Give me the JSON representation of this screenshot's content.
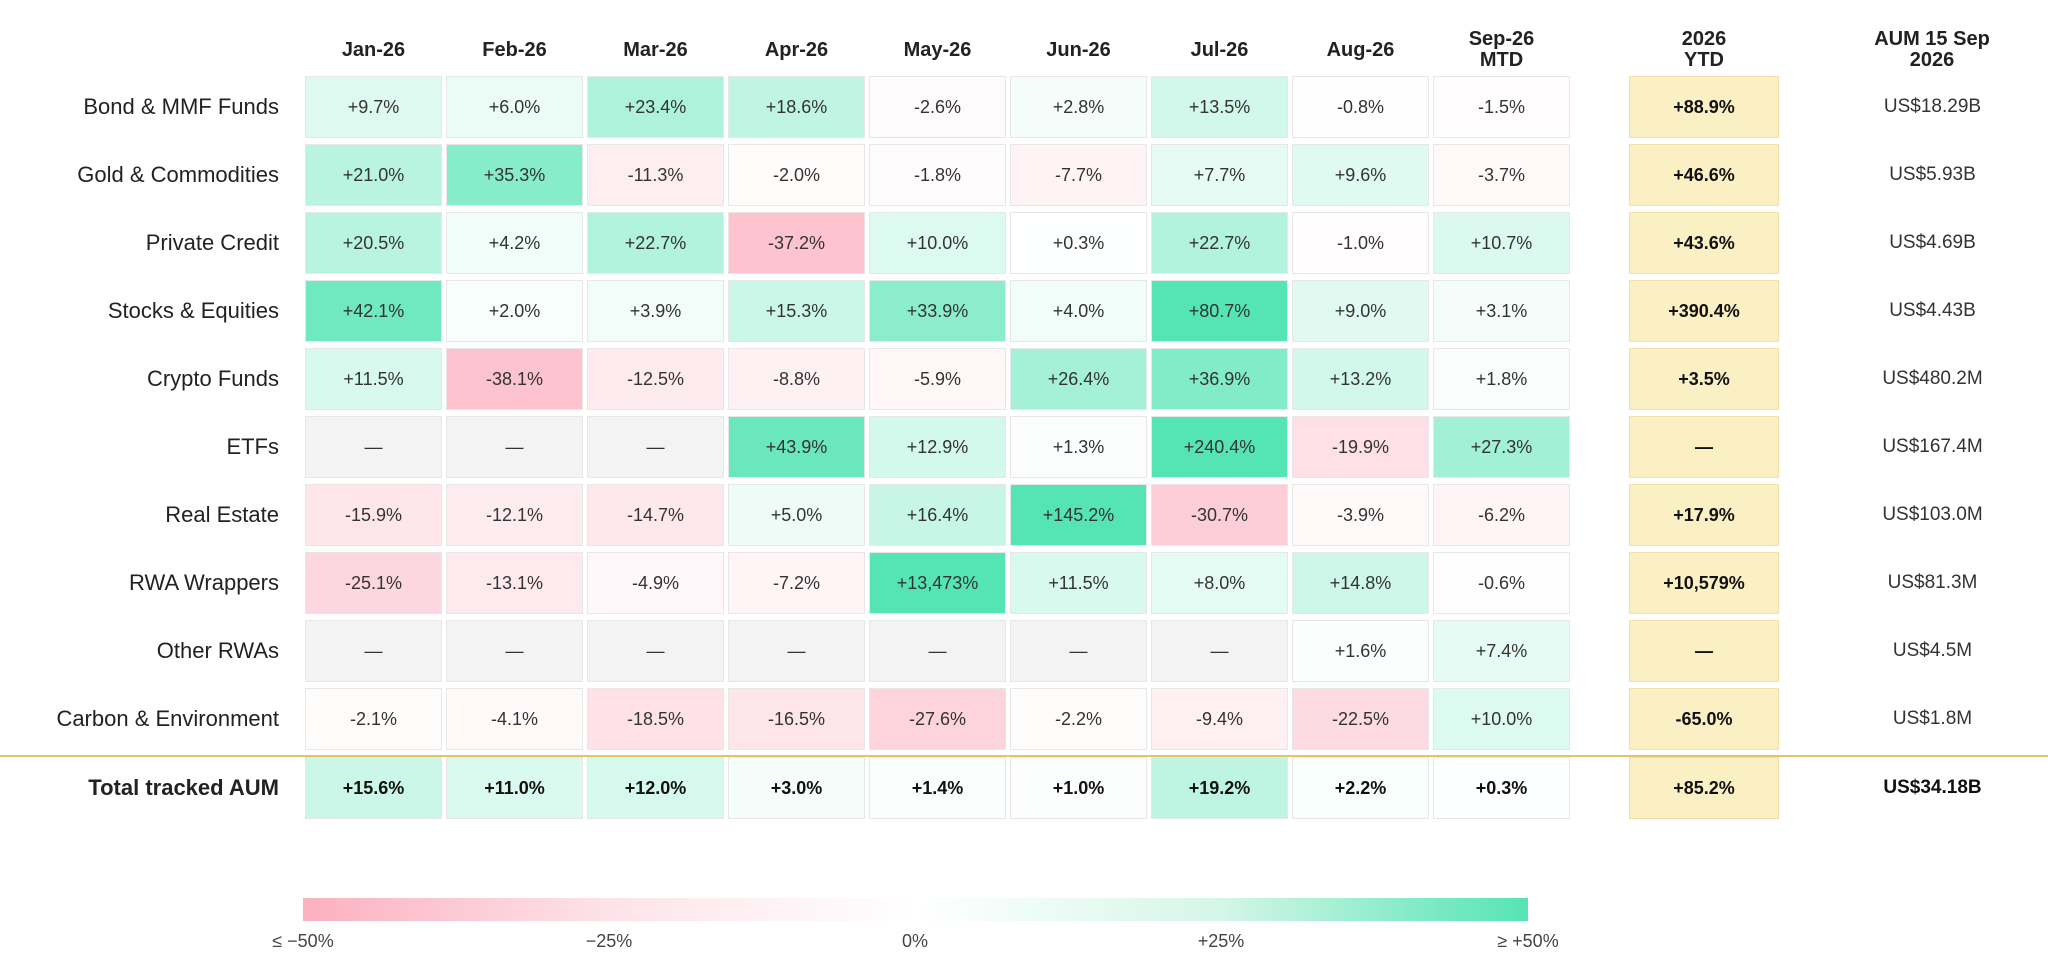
{
  "chart_data": {
    "type": "heatmap",
    "columns": [
      "Jan-26",
      "Feb-26",
      "Mar-26",
      "Apr-26",
      "May-26",
      "Jun-26",
      "Jul-26",
      "Aug-26",
      "Sep-26 MTD"
    ],
    "ytd_header": "2026 YTD",
    "aum_header": "AUM 15 Sep 2026",
    "rows": [
      {
        "label": "Bond & MMF Funds",
        "values": [
          "+9.7%",
          "+6.0%",
          "+23.4%",
          "+18.6%",
          "-2.6%",
          "+2.8%",
          "+13.5%",
          "-0.8%",
          "-1.5%"
        ],
        "ytd": "+88.9%",
        "aum": "US$18.29B"
      },
      {
        "label": "Gold & Commodities",
        "values": [
          "+21.0%",
          "+35.3%",
          "-11.3%",
          "-2.0%",
          "-1.8%",
          "-7.7%",
          "+7.7%",
          "+9.6%",
          "-3.7%"
        ],
        "ytd": "+46.6%",
        "aum": "US$5.93B"
      },
      {
        "label": "Private Credit",
        "values": [
          "+20.5%",
          "+4.2%",
          "+22.7%",
          "-37.2%",
          "+10.0%",
          "+0.3%",
          "+22.7%",
          "-1.0%",
          "+10.7%"
        ],
        "ytd": "+43.6%",
        "aum": "US$4.69B"
      },
      {
        "label": "Stocks & Equities",
        "values": [
          "+42.1%",
          "+2.0%",
          "+3.9%",
          "+15.3%",
          "+33.9%",
          "+4.0%",
          "+80.7%",
          "+9.0%",
          "+3.1%"
        ],
        "ytd": "+390.4%",
        "aum": "US$4.43B"
      },
      {
        "label": "Crypto Funds",
        "values": [
          "+11.5%",
          "-38.1%",
          "-12.5%",
          "-8.8%",
          "-5.9%",
          "+26.4%",
          "+36.9%",
          "+13.2%",
          "+1.8%"
        ],
        "ytd": "+3.5%",
        "aum": "US$480.2M"
      },
      {
        "label": "ETFs",
        "values": [
          "—",
          "—",
          "—",
          "+43.9%",
          "+12.9%",
          "+1.3%",
          "+240.4%",
          "-19.9%",
          "+27.3%"
        ],
        "ytd": "—",
        "aum": "US$167.4M"
      },
      {
        "label": "Real Estate",
        "values": [
          "-15.9%",
          "-12.1%",
          "-14.7%",
          "+5.0%",
          "+16.4%",
          "+145.2%",
          "-30.7%",
          "-3.9%",
          "-6.2%"
        ],
        "ytd": "+17.9%",
        "aum": "US$103.0M"
      },
      {
        "label": "RWA Wrappers",
        "values": [
          "-25.1%",
          "-13.1%",
          "-4.9%",
          "-7.2%",
          "+13,473%",
          "+11.5%",
          "+8.0%",
          "+14.8%",
          "-0.6%"
        ],
        "ytd": "+10,579%",
        "aum": "US$81.3M"
      },
      {
        "label": "Other RWAs",
        "values": [
          "—",
          "—",
          "—",
          "—",
          "—",
          "—",
          "—",
          "+1.6%",
          "+7.4%"
        ],
        "ytd": "—",
        "aum": "US$4.5M"
      },
      {
        "label": "Carbon & Environment",
        "values": [
          "-2.1%",
          "-4.1%",
          "-18.5%",
          "-16.5%",
          "-27.6%",
          "-2.2%",
          "-9.4%",
          "-22.5%",
          "+10.0%"
        ],
        "ytd": "-65.0%",
        "aum": "US$1.8M"
      }
    ],
    "total_row": {
      "label": "Total tracked AUM",
      "values": [
        "+15.6%",
        "+11.0%",
        "+12.0%",
        "+3.0%",
        "+1.4%",
        "+1.0%",
        "+19.2%",
        "+2.2%",
        "+0.3%"
      ],
      "ytd": "+85.2%",
      "aum": "US$34.18B"
    },
    "color_scale": {
      "min": -50,
      "max": 50,
      "negative_color": "#fcb0bf",
      "neutral_color": "#ffffff",
      "positive_color": "#55e4b4",
      "missing_color": "#f3f3f3",
      "ytd_color": "#fbf0c4",
      "tick_labels": [
        "≤ −50%",
        "−25%",
        "0%",
        "+25%",
        "≥ +50%"
      ]
    }
  }
}
